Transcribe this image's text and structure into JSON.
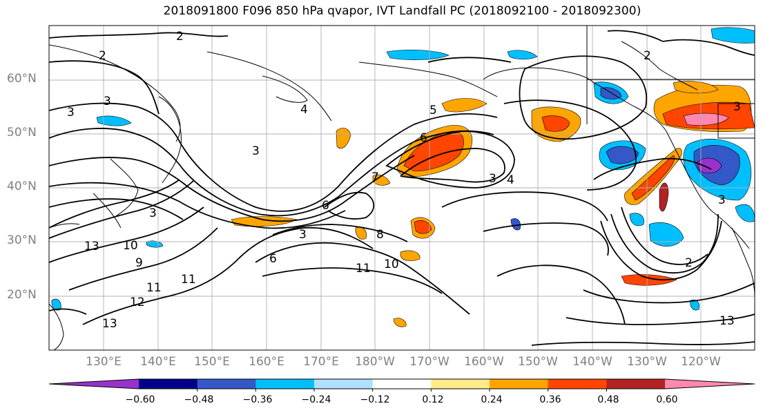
{
  "title": "2018091800 F096 850 hPa qvapor, IVT Landfall PC (2018092100 - 2018092300)",
  "map": {
    "lat_labels": [
      "60°N",
      "50°N",
      "40°N",
      "30°N",
      "20°N"
    ],
    "lon_labels": [
      "130°E",
      "140°E",
      "150°E",
      "160°E",
      "170°E",
      "180°W",
      "170°W",
      "160°W",
      "150°W",
      "140°W",
      "130°W",
      "120°W"
    ],
    "contour_labels": [
      "2",
      "2",
      "2",
      "3",
      "3",
      "3",
      "3",
      "3",
      "3",
      "3",
      "3",
      "4",
      "4",
      "5",
      "6",
      "6",
      "6",
      "7",
      "8",
      "9",
      "10",
      "10",
      "11",
      "11",
      "11",
      "12",
      "13",
      "13",
      "13",
      "2"
    ]
  },
  "colorbar": {
    "ticks": [
      "−0.60",
      "−0.48",
      "−0.36",
      "−0.24",
      "−0.12",
      "0.12",
      "0.24",
      "0.36",
      "0.48",
      "0.60"
    ],
    "colors": [
      "#9932cc",
      "#00008b",
      "#3458c8",
      "#00bfff",
      "#b0e0ff",
      "#ffffff",
      "#ffeb8a",
      "#ffa500",
      "#ff4500",
      "#b22222",
      "#ff88b0"
    ]
  }
}
